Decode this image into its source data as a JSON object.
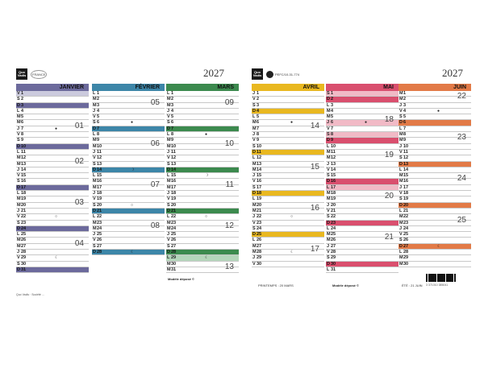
{
  "brand": {
    "logo_text": "Quo Vadis",
    "badge_text": "FRANCE",
    "pefc": "PEFC/10-31-774"
  },
  "year": "2027",
  "moon_symbols": {
    "new": "●",
    "first": "☽",
    "full": "○",
    "last": "☾"
  },
  "months_left": [
    {
      "name": "JANVIER",
      "color": "#6c6a9c",
      "light": "#cbcadd",
      "days": [
        [
          "V",
          "1",
          1,
          "",
          ""
        ],
        [
          "S",
          "2",
          0,
          "",
          ""
        ],
        [
          "D",
          "3",
          2,
          "",
          ""
        ],
        [
          "L",
          "4",
          0,
          "",
          ""
        ],
        [
          "M",
          "5",
          0,
          "",
          ""
        ],
        [
          "M",
          "6",
          0,
          "",
          ""
        ],
        [
          "J",
          "7",
          0,
          "01",
          "●"
        ],
        [
          "V",
          "8",
          0,
          "",
          ""
        ],
        [
          "S",
          "9",
          0,
          "",
          ""
        ],
        [
          "D",
          "10",
          2,
          "",
          ""
        ],
        [
          "L",
          "11",
          0,
          "",
          ""
        ],
        [
          "M",
          "12",
          0,
          "",
          ""
        ],
        [
          "M",
          "13",
          0,
          "02",
          ""
        ],
        [
          "J",
          "14",
          0,
          "",
          ""
        ],
        [
          "V",
          "15",
          0,
          "",
          ""
        ],
        [
          "S",
          "16",
          0,
          "",
          ""
        ],
        [
          "D",
          "17",
          2,
          "",
          ""
        ],
        [
          "L",
          "18",
          0,
          "",
          ""
        ],
        [
          "M",
          "19",
          0,
          "",
          ""
        ],
        [
          "M",
          "20",
          0,
          "03",
          ""
        ],
        [
          "J",
          "21",
          0,
          "",
          ""
        ],
        [
          "V",
          "22",
          0,
          "",
          "○"
        ],
        [
          "S",
          "23",
          0,
          "",
          ""
        ],
        [
          "D",
          "24",
          2,
          "",
          ""
        ],
        [
          "L",
          "25",
          0,
          "",
          ""
        ],
        [
          "M",
          "26",
          0,
          "",
          ""
        ],
        [
          "M",
          "27",
          0,
          "04",
          ""
        ],
        [
          "J",
          "28",
          0,
          "",
          ""
        ],
        [
          "V",
          "29",
          0,
          "",
          "☾"
        ],
        [
          "S",
          "30",
          0,
          "",
          ""
        ],
        [
          "D",
          "31",
          2,
          "",
          ""
        ]
      ]
    },
    {
      "name": "FÉVRIER",
      "color": "#3d86a8",
      "light": "#b7d5e2",
      "days": [
        [
          "L",
          "1",
          0,
          "",
          ""
        ],
        [
          "M",
          "2",
          0,
          "",
          ""
        ],
        [
          "M",
          "3",
          0,
          "05",
          ""
        ],
        [
          "J",
          "4",
          0,
          "",
          ""
        ],
        [
          "V",
          "5",
          0,
          "",
          ""
        ],
        [
          "S",
          "6",
          0,
          "",
          "●"
        ],
        [
          "D",
          "7",
          2,
          "",
          ""
        ],
        [
          "L",
          "8",
          0,
          "",
          ""
        ],
        [
          "M",
          "9",
          0,
          "",
          ""
        ],
        [
          "M",
          "10",
          0,
          "06",
          ""
        ],
        [
          "J",
          "11",
          0,
          "",
          ""
        ],
        [
          "V",
          "12",
          0,
          "",
          ""
        ],
        [
          "S",
          "13",
          0,
          "",
          ""
        ],
        [
          "D",
          "14",
          2,
          "",
          "☽"
        ],
        [
          "L",
          "15",
          0,
          "",
          ""
        ],
        [
          "M",
          "16",
          0,
          "",
          ""
        ],
        [
          "M",
          "17",
          0,
          "07",
          ""
        ],
        [
          "J",
          "18",
          0,
          "",
          ""
        ],
        [
          "V",
          "19",
          0,
          "",
          ""
        ],
        [
          "S",
          "20",
          0,
          "",
          "○"
        ],
        [
          "D",
          "21",
          2,
          "",
          ""
        ],
        [
          "L",
          "22",
          0,
          "",
          ""
        ],
        [
          "M",
          "23",
          0,
          "",
          ""
        ],
        [
          "M",
          "24",
          0,
          "08",
          ""
        ],
        [
          "J",
          "25",
          0,
          "",
          ""
        ],
        [
          "V",
          "26",
          0,
          "",
          ""
        ],
        [
          "S",
          "27",
          0,
          "",
          ""
        ],
        [
          "D",
          "28",
          2,
          "",
          "☾"
        ]
      ]
    },
    {
      "name": "MARS",
      "color": "#3c8a4e",
      "light": "#b5d6bb",
      "days": [
        [
          "L",
          "1",
          0,
          "",
          ""
        ],
        [
          "M",
          "2",
          0,
          "",
          ""
        ],
        [
          "M",
          "3",
          0,
          "09",
          ""
        ],
        [
          "J",
          "4",
          0,
          "",
          ""
        ],
        [
          "V",
          "5",
          0,
          "",
          ""
        ],
        [
          "S",
          "6",
          0,
          "",
          ""
        ],
        [
          "D",
          "7",
          2,
          "",
          ""
        ],
        [
          "L",
          "8",
          0,
          "",
          "●"
        ],
        [
          "M",
          "9",
          0,
          "",
          ""
        ],
        [
          "M",
          "10",
          0,
          "10",
          ""
        ],
        [
          "J",
          "11",
          0,
          "",
          ""
        ],
        [
          "V",
          "12",
          0,
          "",
          ""
        ],
        [
          "S",
          "13",
          0,
          "",
          ""
        ],
        [
          "D",
          "14",
          2,
          "",
          ""
        ],
        [
          "L",
          "15",
          0,
          "",
          "☽"
        ],
        [
          "M",
          "16",
          0,
          "",
          ""
        ],
        [
          "M",
          "17",
          0,
          "11",
          ""
        ],
        [
          "J",
          "18",
          0,
          "",
          ""
        ],
        [
          "V",
          "19",
          0,
          "",
          ""
        ],
        [
          "S",
          "20",
          0,
          "",
          ""
        ],
        [
          "D",
          "21",
          2,
          "",
          ""
        ],
        [
          "L",
          "22",
          0,
          "",
          "○"
        ],
        [
          "M",
          "23",
          0,
          "",
          ""
        ],
        [
          "M",
          "24",
          0,
          "12",
          ""
        ],
        [
          "J",
          "25",
          0,
          "",
          ""
        ],
        [
          "V",
          "26",
          0,
          "",
          ""
        ],
        [
          "S",
          "27",
          0,
          "",
          ""
        ],
        [
          "D",
          "28",
          2,
          "",
          ""
        ],
        [
          "L",
          "29",
          1,
          "",
          "☾"
        ],
        [
          "M",
          "30",
          0,
          "",
          ""
        ],
        [
          "M",
          "31",
          0,
          "13",
          ""
        ]
      ]
    }
  ],
  "months_right": [
    {
      "name": "AVRIL",
      "color": "#e9b820",
      "light": "#f6e3a1",
      "days": [
        [
          "J",
          "1",
          0,
          "",
          ""
        ],
        [
          "V",
          "2",
          0,
          "",
          ""
        ],
        [
          "S",
          "3",
          0,
          "",
          ""
        ],
        [
          "D",
          "4",
          2,
          "",
          ""
        ],
        [
          "L",
          "5",
          0,
          "",
          ""
        ],
        [
          "M",
          "6",
          0,
          "",
          "●"
        ],
        [
          "M",
          "7",
          0,
          "14",
          ""
        ],
        [
          "J",
          "8",
          0,
          "",
          ""
        ],
        [
          "V",
          "9",
          0,
          "",
          ""
        ],
        [
          "S",
          "10",
          0,
          "",
          ""
        ],
        [
          "D",
          "11",
          2,
          "",
          ""
        ],
        [
          "L",
          "12",
          0,
          "",
          ""
        ],
        [
          "M",
          "13",
          0,
          "",
          ""
        ],
        [
          "M",
          "14",
          0,
          "15",
          ""
        ],
        [
          "J",
          "15",
          0,
          "",
          ""
        ],
        [
          "V",
          "16",
          0,
          "",
          ""
        ],
        [
          "S",
          "17",
          0,
          "",
          ""
        ],
        [
          "D",
          "18",
          2,
          "",
          ""
        ],
        [
          "L",
          "19",
          0,
          "",
          ""
        ],
        [
          "M",
          "20",
          0,
          "",
          ""
        ],
        [
          "M",
          "21",
          0,
          "16",
          ""
        ],
        [
          "J",
          "22",
          0,
          "",
          "○"
        ],
        [
          "V",
          "23",
          0,
          "",
          ""
        ],
        [
          "S",
          "24",
          0,
          "",
          ""
        ],
        [
          "D",
          "25",
          2,
          "",
          ""
        ],
        [
          "L",
          "26",
          0,
          "",
          ""
        ],
        [
          "M",
          "27",
          0,
          "",
          ""
        ],
        [
          "M",
          "28",
          0,
          "17",
          "☾"
        ],
        [
          "J",
          "29",
          0,
          "",
          ""
        ],
        [
          "V",
          "30",
          0,
          "",
          ""
        ]
      ]
    },
    {
      "name": "MAI",
      "color": "#d94f6e",
      "light": "#f1bac6",
      "days": [
        [
          "S",
          "1",
          1,
          "",
          ""
        ],
        [
          "D",
          "2",
          2,
          "",
          ""
        ],
        [
          "L",
          "3",
          0,
          "",
          ""
        ],
        [
          "M",
          "4",
          0,
          "",
          ""
        ],
        [
          "M",
          "5",
          0,
          "",
          ""
        ],
        [
          "J",
          "6",
          1,
          "18",
          "●"
        ],
        [
          "V",
          "7",
          0,
          "",
          ""
        ],
        [
          "S",
          "8",
          1,
          "",
          ""
        ],
        [
          "D",
          "9",
          2,
          "",
          ""
        ],
        [
          "L",
          "10",
          0,
          "",
          ""
        ],
        [
          "M",
          "11",
          0,
          "",
          ""
        ],
        [
          "M",
          "12",
          0,
          "19",
          ""
        ],
        [
          "J",
          "13",
          0,
          "",
          ""
        ],
        [
          "V",
          "14",
          0,
          "",
          ""
        ],
        [
          "S",
          "15",
          0,
          "",
          ""
        ],
        [
          "D",
          "16",
          2,
          "",
          ""
        ],
        [
          "L",
          "17",
          1,
          "",
          ""
        ],
        [
          "M",
          "18",
          0,
          "",
          ""
        ],
        [
          "M",
          "19",
          0,
          "20",
          ""
        ],
        [
          "J",
          "20",
          0,
          "",
          ""
        ],
        [
          "V",
          "21",
          0,
          "",
          ""
        ],
        [
          "S",
          "22",
          0,
          "",
          ""
        ],
        [
          "D",
          "23",
          2,
          "",
          ""
        ],
        [
          "L",
          "24",
          0,
          "",
          ""
        ],
        [
          "M",
          "25",
          0,
          "",
          ""
        ],
        [
          "M",
          "26",
          0,
          "21",
          ""
        ],
        [
          "J",
          "27",
          0,
          "",
          ""
        ],
        [
          "V",
          "28",
          0,
          "",
          ""
        ],
        [
          "S",
          "29",
          0,
          "",
          ""
        ],
        [
          "D",
          "30",
          2,
          "",
          ""
        ],
        [
          "L",
          "31",
          0,
          "",
          ""
        ]
      ]
    },
    {
      "name": "JUIN",
      "color": "#e27a47",
      "light": "#f4c7ad",
      "days": [
        [
          "M",
          "1",
          0,
          "",
          ""
        ],
        [
          "M",
          "2",
          0,
          "22",
          ""
        ],
        [
          "J",
          "3",
          0,
          "",
          ""
        ],
        [
          "V",
          "4",
          0,
          "",
          "●"
        ],
        [
          "S",
          "5",
          0,
          "",
          ""
        ],
        [
          "D",
          "6",
          2,
          "",
          ""
        ],
        [
          "L",
          "7",
          0,
          "",
          ""
        ],
        [
          "M",
          "8",
          0,
          "",
          ""
        ],
        [
          "M",
          "9",
          0,
          "23",
          ""
        ],
        [
          "J",
          "10",
          0,
          "",
          ""
        ],
        [
          "V",
          "11",
          0,
          "",
          ""
        ],
        [
          "S",
          "12",
          0,
          "",
          ""
        ],
        [
          "D",
          "13",
          2,
          "",
          ""
        ],
        [
          "L",
          "14",
          0,
          "",
          ""
        ],
        [
          "M",
          "15",
          0,
          "",
          ""
        ],
        [
          "M",
          "16",
          0,
          "24",
          ""
        ],
        [
          "J",
          "17",
          0,
          "",
          ""
        ],
        [
          "V",
          "18",
          0,
          "",
          ""
        ],
        [
          "S",
          "19",
          0,
          "",
          ""
        ],
        [
          "D",
          "20",
          2,
          "",
          ""
        ],
        [
          "L",
          "21",
          0,
          "",
          ""
        ],
        [
          "M",
          "22",
          0,
          "",
          ""
        ],
        [
          "M",
          "23",
          0,
          "25",
          ""
        ],
        [
          "J",
          "24",
          0,
          "",
          ""
        ],
        [
          "V",
          "25",
          0,
          "",
          ""
        ],
        [
          "S",
          "26",
          0,
          "",
          ""
        ],
        [
          "D",
          "27",
          2,
          "",
          "☾"
        ],
        [
          "L",
          "28",
          0,
          "",
          ""
        ],
        [
          "M",
          "29",
          0,
          "",
          ""
        ],
        [
          "M",
          "30",
          0,
          "",
          ""
        ]
      ]
    }
  ],
  "footer": {
    "left_text": "Quo Vadis · Société ...",
    "modele_left": "Modèle déposé ©",
    "season_left": "PRINTEMPS : 20 MARS",
    "modele_right": "Modèle déposé ©",
    "season_right": "ÉTÉ : 21 JUIN",
    "barcode_number": "3 371010 385041"
  }
}
